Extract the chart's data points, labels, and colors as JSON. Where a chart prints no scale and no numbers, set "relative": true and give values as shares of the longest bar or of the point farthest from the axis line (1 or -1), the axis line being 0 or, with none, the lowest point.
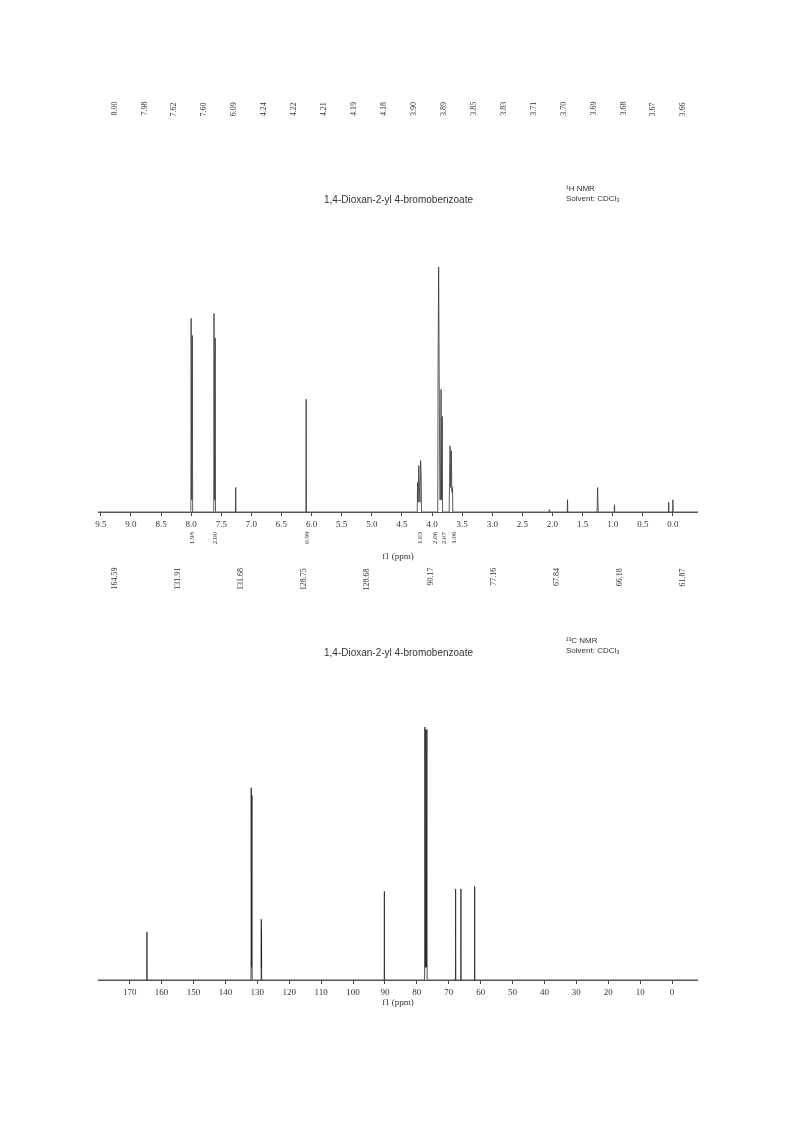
{
  "chart_data": [
    {
      "type": "line",
      "relative": true,
      "title": "1,4-Dioxan-2-yl 4-bromobenzoate",
      "subtitle": "¹H NMR\nSolvent: CDCl₃",
      "xlabel": "f1 (ppm)",
      "color": "#333333",
      "xlim": [
        9.55,
        -0.42
      ],
      "xticks": [
        {
          "value": 9.5,
          "label": "9.5"
        },
        {
          "value": 9,
          "label": "9.0"
        },
        {
          "value": 8.5,
          "label": "8.5"
        },
        {
          "value": 8,
          "label": "8.0"
        },
        {
          "value": 7.5,
          "label": "7.5"
        },
        {
          "value": 7,
          "label": "7.0"
        },
        {
          "value": 6.5,
          "label": "6.5"
        },
        {
          "value": 6,
          "label": "6.0"
        },
        {
          "value": 5.5,
          "label": "5.5"
        },
        {
          "value": 5,
          "label": "5.0"
        },
        {
          "value": 4.5,
          "label": "4.5"
        },
        {
          "value": 4,
          "label": "4.0"
        },
        {
          "value": 3.5,
          "label": "3.5"
        },
        {
          "value": 3,
          "label": "3.0"
        },
        {
          "value": 2.5,
          "label": "2.5"
        },
        {
          "value": 2,
          "label": "2.0"
        },
        {
          "value": 1.5,
          "label": "1.5"
        },
        {
          "value": 1,
          "label": "1.0"
        },
        {
          "value": 0.5,
          "label": "0.5"
        },
        {
          "value": 0,
          "label": "0.0"
        }
      ],
      "x": [
        9.55,
        8.005,
        8.0,
        7.99,
        7.98,
        7.975,
        7.625,
        7.62,
        7.61,
        7.6,
        7.595,
        7.265,
        7.26,
        7.255,
        6.095,
        6.09,
        6.085,
        4.245,
        4.24,
        4.23,
        4.22,
        4.21,
        4.2,
        4.19,
        4.18,
        4.175,
        3.905,
        3.9,
        3.89,
        3.87,
        3.86,
        3.85,
        3.84,
        3.83,
        3.825,
        3.715,
        3.71,
        3.7,
        3.69,
        3.68,
        3.67,
        3.66,
        3.655,
        2.06,
        2.05,
        2.04,
        1.755,
        1.75,
        1.745,
        1.26,
        1.25,
        1.24,
        0.975,
        0.97,
        0.965,
        0.075,
        0.07,
        0.065,
        0.005,
        0.0,
        -0.005,
        -0.42
      ],
      "values": [
        0,
        0,
        0.79,
        0.05,
        0.72,
        0,
        0,
        0.81,
        0.05,
        0.71,
        0,
        0,
        0.1,
        0,
        0,
        0.46,
        0,
        0,
        0.12,
        0.04,
        0.19,
        0.1,
        0.04,
        0.21,
        0.15,
        0,
        0,
        0.6,
        1.0,
        0.05,
        0.05,
        0.5,
        0.05,
        0.39,
        0,
        0,
        0.12,
        0.27,
        0.1,
        0.25,
        0.08,
        0.1,
        0,
        0,
        0.01,
        0,
        0,
        0.05,
        0,
        0,
        0.1,
        0,
        0,
        0.03,
        0,
        0,
        0.04,
        0,
        0,
        0.05,
        0,
        0
      ],
      "annotations": [
        "8.00",
        "7.98",
        "7.62",
        "7.60",
        "6.09",
        "4.24",
        "4.22",
        "4.21",
        "4.19",
        "4.18",
        "3.90",
        "3.89",
        "3.85",
        "3.83",
        "3.71",
        "3.70",
        "3.69",
        "3.68",
        "3.67",
        "3.66",
        {
          "text": "1.98",
          "x": 7.99,
          "y": 0
        },
        {
          "text": "2.00",
          "x": 7.61,
          "y": 0
        },
        {
          "text": "0.99",
          "x": 6.09,
          "y": 0
        },
        {
          "text": "1.03",
          "x": 4.21,
          "y": 0
        },
        {
          "text": "2.06",
          "x": 3.9,
          "y": 0
        },
        {
          "text": "2.07",
          "x": 3.83,
          "y": 0
        },
        {
          "text": "1.06",
          "x": 3.68,
          "y": 0
        }
      ]
    },
    {
      "type": "line",
      "relative": true,
      "title": "1,4-Dioxan-2-yl 4-bromobenzoate",
      "subtitle": "¹³C NMR\nSolvent: CDCl₃",
      "xlabel": "f1 (ppm)",
      "color": "#222222",
      "xlim": [
        180,
        -8.2
      ],
      "xticks": [
        170,
        160,
        150,
        140,
        130,
        120,
        110,
        100,
        90,
        80,
        70,
        60,
        50,
        40,
        30,
        20,
        10,
        0
      ],
      "x": [
        180,
        164.65,
        164.59,
        164.53,
        131.97,
        131.91,
        131.8,
        131.68,
        131.62,
        128.8,
        128.75,
        128.72,
        128.68,
        128.62,
        90.23,
        90.17,
        90.11,
        77.55,
        77.48,
        77.3,
        77.16,
        77.0,
        76.84,
        76.77,
        67.9,
        67.84,
        67.78,
        66.24,
        66.18,
        66.12,
        61.93,
        61.87,
        61.81,
        -8.2
      ],
      "values": [
        0,
        0,
        0.19,
        0,
        0,
        0.76,
        0.05,
        0.73,
        0,
        0,
        0.24,
        0.05,
        0.2,
        0,
        0,
        0.35,
        0,
        0,
        1.0,
        0.05,
        0.99,
        0.05,
        0.99,
        0,
        0,
        0.36,
        0,
        0,
        0.36,
        0,
        0,
        0.37,
        0,
        0
      ],
      "annotations": [
        "164.59",
        "131.91",
        "131.68",
        "128.75",
        "128.68",
        "90.17",
        "77.16",
        "67.84",
        "66.18",
        "61.87"
      ]
    }
  ]
}
